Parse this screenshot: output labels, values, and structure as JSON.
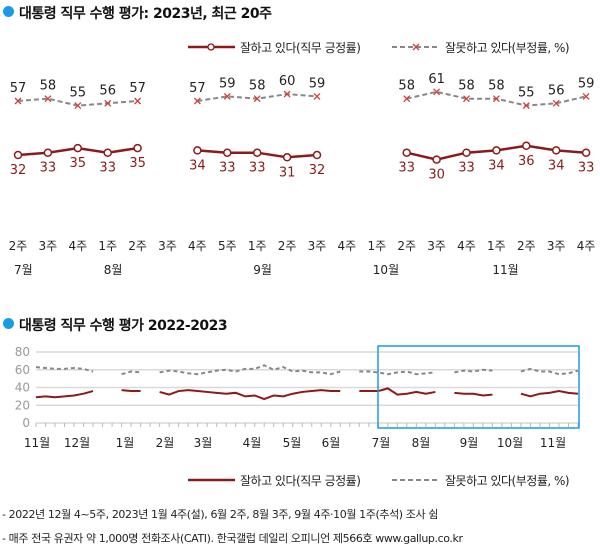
{
  "colors": {
    "approve": "#8b1a1a",
    "disapprove": "#888888",
    "marker_x": "#d23c3c",
    "accent": "#1a9be6",
    "grid": "#d9d9d9"
  },
  "legend": {
    "approve": "잘하고 있다(직무 긍정률)",
    "disapprove": "잘못하고 있다(부정률, %)"
  },
  "footnotes": [
    "- 2022년 12월 4~5주, 2023년 1월 4주(설), 6월 2주, 8월 3주, 9월 4주·10월 1주(추석) 조사 쉼",
    "- 매주 전국 유권자 약 1,000명 전화조사(CATI). 한국갤럽 데일리 오피니언 제566호 www.gallup.co.kr"
  ],
  "chart_data": [
    {
      "type": "line",
      "title": "대통령 직무 수행 평가: 2023년, 최근 20주",
      "categories": [
        "2주",
        "3주",
        "4주",
        "1주",
        "2주",
        "3주",
        "4주",
        "5주",
        "1주",
        "2주",
        "3주",
        "4주",
        "1주",
        "2주",
        "3주",
        "4주",
        "1주",
        "2주",
        "3주",
        "4주"
      ],
      "month_labels": [
        {
          "index": 0,
          "label": "7월"
        },
        {
          "index": 3,
          "label": "8월"
        },
        {
          "index": 8,
          "label": "9월"
        },
        {
          "index": 12,
          "label": "10월"
        },
        {
          "index": 16,
          "label": "11월"
        }
      ],
      "series": [
        {
          "name": "잘하고 있다(직무 긍정률)",
          "values": [
            32,
            33,
            35,
            33,
            35,
            null,
            34,
            33,
            33,
            31,
            32,
            null,
            null,
            33,
            30,
            33,
            34,
            36,
            34,
            33
          ]
        },
        {
          "name": "잘못하고 있다(부정률, %)",
          "values": [
            57,
            58,
            55,
            56,
            57,
            null,
            57,
            59,
            58,
            60,
            59,
            null,
            null,
            58,
            61,
            58,
            58,
            55,
            56,
            59
          ]
        }
      ]
    },
    {
      "type": "line",
      "title": "대통령 직무 수행 평가 2022-2023",
      "ylim": [
        0,
        80
      ],
      "yticks": [
        0,
        20,
        40,
        60,
        80
      ],
      "grid": true,
      "month_labels": [
        "11월",
        "12월",
        "1월",
        "2월",
        "3월",
        "4월",
        "5월",
        "6월",
        "7월",
        "8월",
        "9월",
        "10월",
        "11월"
      ],
      "series": [
        {
          "name": "잘하고 있다(직무 긍정률)",
          "values": [
            29,
            30,
            29,
            30,
            31,
            33,
            36,
            null,
            null,
            37,
            36,
            36,
            null,
            35,
            32,
            36,
            37,
            36,
            35,
            34,
            33,
            34,
            30,
            31,
            27,
            31,
            30,
            33,
            35,
            36,
            37,
            36,
            36,
            null,
            36,
            36,
            36,
            39,
            32,
            33,
            35,
            33,
            35,
            null,
            34,
            33,
            33,
            31,
            32,
            null,
            null,
            33,
            30,
            33,
            34,
            36,
            34,
            33
          ]
        },
        {
          "name": "잘못하고 있다(부정률, %)",
          "values": [
            63,
            62,
            61,
            61,
            62,
            61,
            58,
            null,
            null,
            55,
            58,
            57,
            null,
            57,
            59,
            58,
            56,
            55,
            57,
            59,
            60,
            58,
            61,
            61,
            65,
            60,
            63,
            58,
            59,
            57,
            57,
            55,
            58,
            null,
            58,
            58,
            57,
            55,
            57,
            58,
            55,
            56,
            57,
            null,
            57,
            59,
            58,
            60,
            59,
            null,
            null,
            58,
            61,
            58,
            58,
            55,
            56,
            59
          ]
        }
      ],
      "highlight": "최근 20주"
    }
  ]
}
